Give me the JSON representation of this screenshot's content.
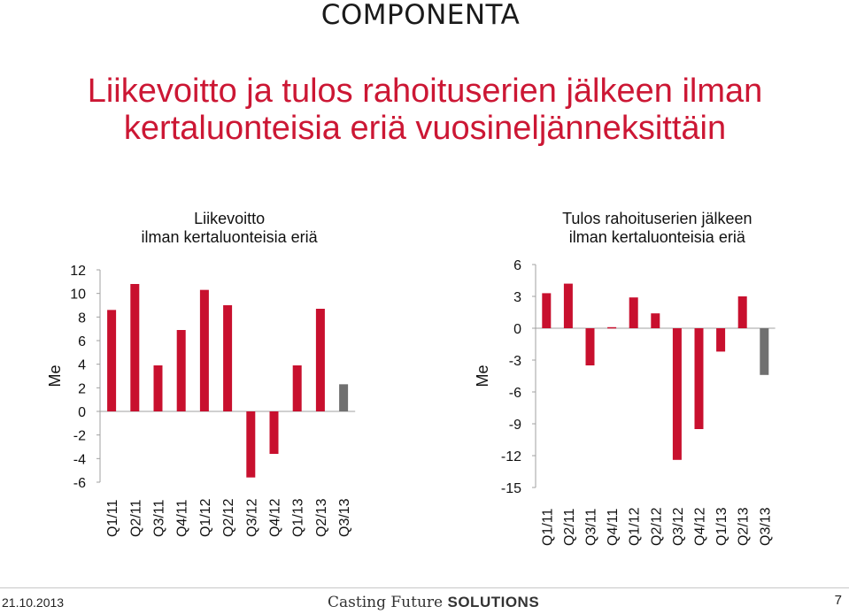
{
  "header": {
    "logo_text": "COMPONENTA",
    "title": "Liikevoitto ja tulos rahoituserien jälkeen ilman kertaluonteisia eriä vuosineljänneksittäin"
  },
  "footer": {
    "date": "21.10.2013",
    "tagline_prefix": "Casting Future",
    "tagline_suffix": "SOLUTIONS",
    "page_number": "7"
  },
  "colors": {
    "accent": "#cc1734",
    "bar_red": "#c8102e",
    "bar_grey": "#707070"
  },
  "chart_data": [
    {
      "type": "bar",
      "title": "Liikevoitto ilman kertaluonteisia eriä",
      "ylabel": "Me",
      "ylim": [
        -6,
        12
      ],
      "yticks": [
        12,
        10,
        8,
        6,
        4,
        2,
        0,
        -2,
        -4,
        -6
      ],
      "categories": [
        "Q1/11",
        "Q2/11",
        "Q3/11",
        "Q4/11",
        "Q1/12",
        "Q2/12",
        "Q3/12",
        "Q4/12",
        "Q1/13",
        "Q2/13",
        "Q3/13"
      ],
      "values": [
        8.6,
        10.8,
        3.9,
        6.9,
        10.3,
        9.0,
        -5.6,
        -3.6,
        3.9,
        8.7,
        2.3
      ],
      "bar_colors": [
        "red",
        "red",
        "red",
        "red",
        "red",
        "red",
        "red",
        "red",
        "red",
        "red",
        "grey"
      ]
    },
    {
      "type": "bar",
      "title": "Tulos rahoituserien jälkeen ilman kertaluonteisia eriä",
      "ylabel": "Me",
      "ylim": [
        -15,
        6
      ],
      "yticks": [
        6,
        3,
        0,
        -3,
        -6,
        -9,
        -12,
        -15
      ],
      "categories": [
        "Q1/11",
        "Q2/11",
        "Q3/11",
        "Q4/11",
        "Q1/12",
        "Q2/12",
        "Q3/12",
        "Q4/12",
        "Q1/13",
        "Q2/13",
        "Q3/13"
      ],
      "values": [
        3.3,
        4.2,
        -3.5,
        0.1,
        2.9,
        1.4,
        -12.4,
        -9.5,
        -2.2,
        3.0,
        -4.4
      ],
      "bar_colors": [
        "red",
        "red",
        "red",
        "red",
        "red",
        "red",
        "red",
        "red",
        "red",
        "red",
        "grey"
      ]
    }
  ]
}
